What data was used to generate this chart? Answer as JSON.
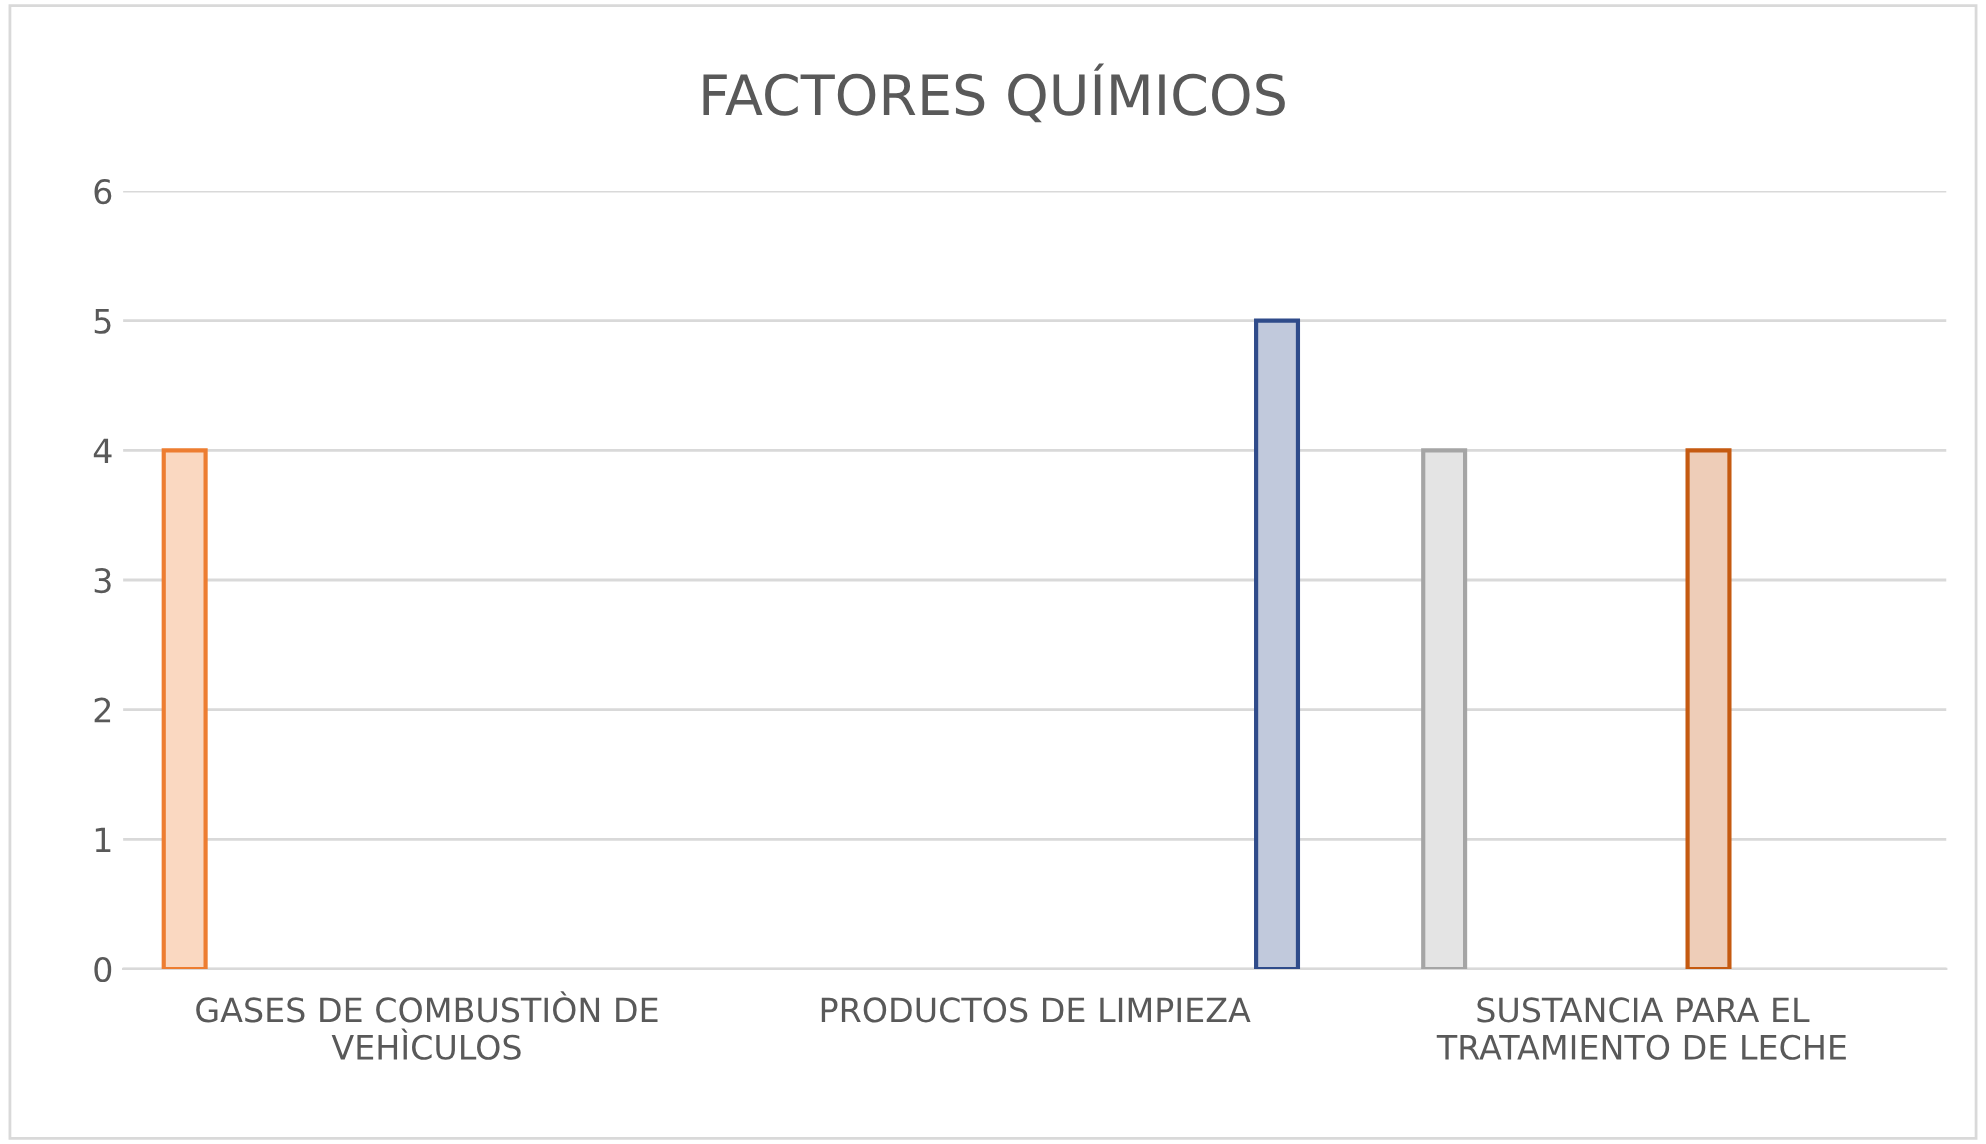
{
  "chart_data": {
    "type": "bar",
    "title": "FACTORES QUÍMICOS",
    "categories": [
      "GASES DE COMBUSTIÒN DE\nVEHÌCULOS",
      "PRODUCTOS DE LIMPIEZA",
      "SUSTANCIA PARA EL\nTRATAMIENTO DE LECHE"
    ],
    "series": [
      {
        "color": "#ed7d31",
        "values": [
          4,
          null,
          null
        ]
      },
      {
        "color": "#a5a5a5",
        "values": [
          null,
          null,
          4
        ]
      },
      {
        "values": [
          null,
          null,
          null
        ]
      },
      {
        "values": [
          null,
          null,
          null
        ]
      },
      {
        "values": [
          null,
          null,
          null
        ]
      },
      {
        "values": [
          null,
          null,
          null
        ]
      },
      {
        "values": [
          null,
          null,
          null
        ]
      },
      {
        "color": "#c55a11",
        "values": [
          null,
          null,
          4
        ]
      },
      {
        "values": [
          null,
          null,
          null
        ]
      },
      {
        "values": [
          null,
          null,
          null
        ]
      },
      {
        "values": [
          null,
          null,
          null
        ]
      },
      {
        "color": "#2f4b8a",
        "values": [
          null,
          5,
          null
        ]
      }
    ],
    "ylim": [
      0,
      6
    ],
    "yticks": [
      0,
      1,
      2,
      3,
      4,
      5,
      6
    ],
    "grid": "y",
    "legend": false
  }
}
